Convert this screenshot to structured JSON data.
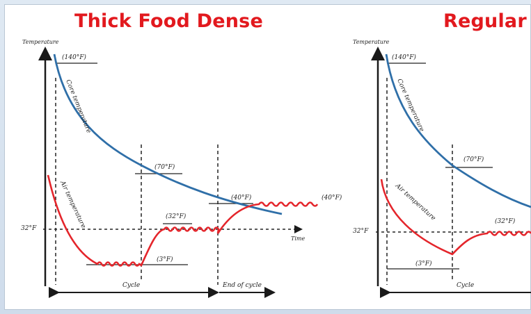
{
  "left_panel": {
    "title": "Thick Food Dense",
    "y_axis_label": "Temperature",
    "x_axis_label": "Time",
    "ref_temp_label": "32°F",
    "core_curve_label": "Core temperature",
    "air_curve_label": "Air temperature",
    "annotations": {
      "t140": "(140°F)",
      "t70": "(70°F)",
      "t40_left": "(40°F)",
      "t40_right": "(40°F)",
      "t32": "(32°F)",
      "t3": "(3°F)"
    },
    "cycle_label": "Cycle",
    "end_of_cycle_label": "End of cycle"
  },
  "right_panel": {
    "title": "Regular",
    "y_axis_label": "Temperature",
    "ref_temp_label": "32°F",
    "core_curve_label": "Core temperature",
    "air_curve_label": "Air temperature",
    "annotations": {
      "t140": "(140°F)",
      "t70": "(70°F)",
      "t32": "(32°F)",
      "t3": "(3°F)"
    },
    "cycle_label": "Cycle"
  },
  "colors": {
    "title": "#e2191e",
    "core_curve": "#2f6fa8",
    "air_curve": "#e4252b",
    "axis": "#1a1a1a"
  }
}
